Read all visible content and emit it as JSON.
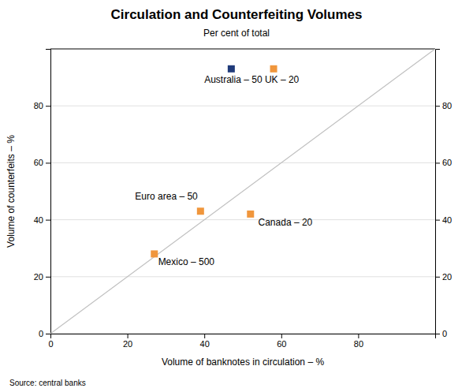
{
  "chart_data": {
    "type": "scatter",
    "title": "Circulation and Counterfeiting Volumes",
    "subtitle": "Per cent of total",
    "xlabel": "Volume of banknotes in circulation – %",
    "ylabel": "Volume of counterfeits – %",
    "source": "Source: central banks",
    "x": [
      47,
      58,
      39,
      52,
      27
    ],
    "values": [
      93,
      93,
      43,
      42,
      28
    ],
    "colors": [
      "#1f3a7a",
      "#f0963c",
      "#f0963c",
      "#f0963c",
      "#f0963c"
    ],
    "marker": "square",
    "reference_line": {
      "x": [
        0,
        100
      ],
      "values": [
        0,
        100
      ],
      "color": "#c0c0c0"
    },
    "annotations": [
      {
        "text": "Australia – 50  UK – 20",
        "x": 40,
        "y": 88
      },
      {
        "text": "Euro area – 50",
        "x": 22,
        "y": 47
      },
      {
        "text": "Canada – 20",
        "x": 54,
        "y": 38
      },
      {
        "text": "Mexico – 500",
        "x": 28,
        "y": 24
      }
    ],
    "xlim": [
      0,
      100
    ],
    "ylim": [
      0,
      100
    ],
    "xticks": [
      0,
      20,
      40,
      60,
      80
    ],
    "yticks": [
      0,
      20,
      40,
      60,
      80
    ],
    "y2lim": [
      0,
      100
    ],
    "y2ticks": [
      0,
      20,
      40,
      60,
      80
    ],
    "grid": "y"
  }
}
